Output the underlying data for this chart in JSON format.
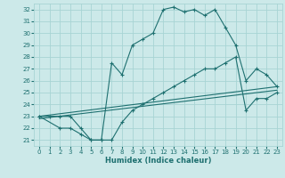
{
  "xlabel": "Humidex (Indice chaleur)",
  "xlim": [
    -0.5,
    23.5
  ],
  "ylim": [
    20.5,
    32.5
  ],
  "xticks": [
    0,
    1,
    2,
    3,
    4,
    5,
    6,
    7,
    8,
    9,
    10,
    11,
    12,
    13,
    14,
    15,
    16,
    17,
    18,
    19,
    20,
    21,
    22,
    23
  ],
  "yticks": [
    21,
    22,
    23,
    24,
    25,
    26,
    27,
    28,
    29,
    30,
    31,
    32
  ],
  "bg_color": "#cce9e9",
  "grid_color": "#a8d4d4",
  "line_color": "#1e7070",
  "line1_x": [
    0,
    1,
    2,
    3,
    4,
    5,
    6,
    7,
    8,
    9,
    10,
    11,
    12,
    13,
    14,
    15,
    16,
    17,
    18,
    19,
    20,
    21,
    22,
    23
  ],
  "line1_y": [
    23,
    23,
    23,
    23,
    22,
    21,
    21,
    27.5,
    26.5,
    29,
    29.5,
    30,
    32,
    32.2,
    31.8,
    32,
    31.5,
    32,
    30.5,
    29,
    26,
    27,
    26.5,
    25.5
  ],
  "line2_x": [
    0,
    2,
    3,
    4,
    5,
    6,
    7,
    8,
    9,
    10,
    11,
    12,
    13,
    14,
    15,
    16,
    17,
    18,
    19,
    20,
    21,
    22,
    23
  ],
  "line2_y": [
    23,
    22,
    22,
    21.5,
    21,
    21,
    21,
    22.5,
    23.5,
    24,
    24.5,
    25,
    25.5,
    26,
    26.5,
    27,
    27,
    27.5,
    28,
    23.5,
    24.5,
    24.5,
    25
  ],
  "line3_x": [
    0,
    23
  ],
  "line3_y": [
    22.8,
    25.2
  ],
  "line4_x": [
    0,
    23
  ],
  "line4_y": [
    23.0,
    25.5
  ]
}
